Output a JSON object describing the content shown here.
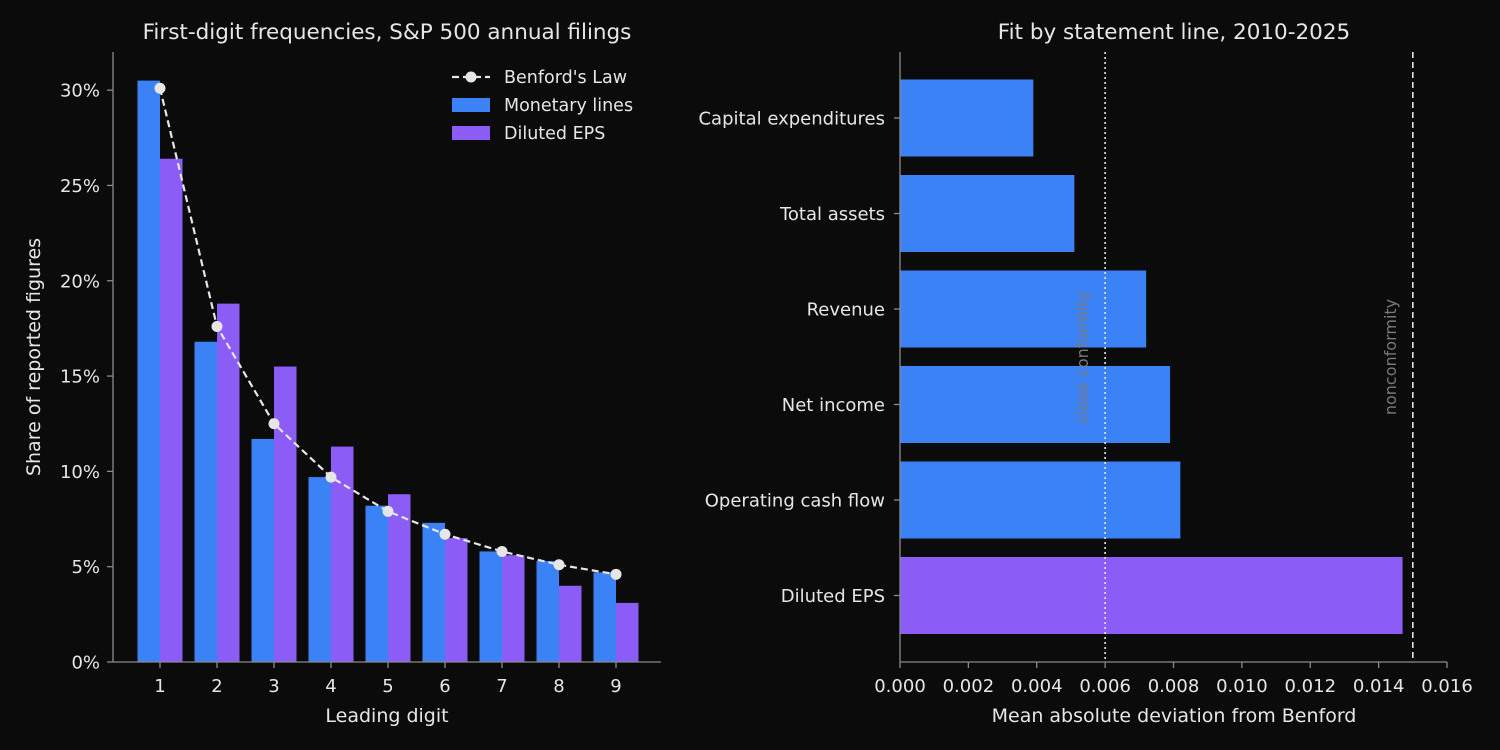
{
  "theme": {
    "background": "#0b0b0b",
    "text": "#e6e6e6",
    "axis": "#8a8a8a",
    "muted_text": "#7a7a7a",
    "blue": "#3b82f6",
    "purple": "#8b5cf6",
    "benford_line": "#e6e6e6"
  },
  "chart_data": [
    {
      "type": "bar",
      "title": "First-digit frequencies, S&P 500 annual filings",
      "xlabel": "Leading digit",
      "ylabel": "Share of reported figures",
      "categories": [
        "1",
        "2",
        "3",
        "4",
        "5",
        "6",
        "7",
        "8",
        "9"
      ],
      "ylim": [
        0,
        0.32
      ],
      "yticks": [
        0,
        0.05,
        0.1,
        0.15,
        0.2,
        0.25,
        0.3
      ],
      "ytick_labels": [
        "0%",
        "5%",
        "10%",
        "15%",
        "20%",
        "25%",
        "30%"
      ],
      "series": [
        {
          "name": "Monetary lines",
          "kind": "bar",
          "color": "#3b82f6",
          "values": [
            0.305,
            0.168,
            0.117,
            0.097,
            0.082,
            0.073,
            0.058,
            0.053,
            0.047
          ]
        },
        {
          "name": "Diluted EPS",
          "kind": "bar",
          "color": "#8b5cf6",
          "values": [
            0.264,
            0.188,
            0.155,
            0.113,
            0.088,
            0.065,
            0.056,
            0.04,
            0.031
          ]
        },
        {
          "name": "Benford's Law",
          "kind": "line",
          "style": "dashed",
          "marker": "circle",
          "color": "#e6e6e6",
          "values": [
            0.301,
            0.176,
            0.125,
            0.097,
            0.079,
            0.067,
            0.058,
            0.051,
            0.046
          ]
        }
      ],
      "legend": {
        "placement": "top-right",
        "order": [
          "Benford's Law",
          "Monetary lines",
          "Diluted EPS"
        ]
      },
      "grid": false
    },
    {
      "type": "bar",
      "orientation": "horizontal",
      "title": "Fit by statement line, 2010-2025",
      "xlabel": "Mean absolute deviation from Benford",
      "categories": [
        "Capital expenditures",
        "Total assets",
        "Revenue",
        "Net income",
        "Operating cash flow",
        "Diluted EPS"
      ],
      "values": [
        0.0039,
        0.0051,
        0.0072,
        0.0079,
        0.0082,
        0.0147
      ],
      "colors": [
        "#3b82f6",
        "#3b82f6",
        "#3b82f6",
        "#3b82f6",
        "#3b82f6",
        "#8b5cf6"
      ],
      "xlim": [
        0,
        0.016
      ],
      "xticks": [
        0,
        0.002,
        0.004,
        0.006,
        0.008,
        0.01,
        0.012,
        0.014,
        0.016
      ],
      "xtick_labels": [
        "0.000",
        "0.002",
        "0.004",
        "0.006",
        "0.008",
        "0.010",
        "0.012",
        "0.014",
        "0.016"
      ],
      "reference_lines": [
        {
          "x": 0.006,
          "style": "dotted",
          "label": "close conformity"
        },
        {
          "x": 0.015,
          "style": "dashed",
          "label": "nonconformity"
        }
      ],
      "grid": false
    }
  ]
}
